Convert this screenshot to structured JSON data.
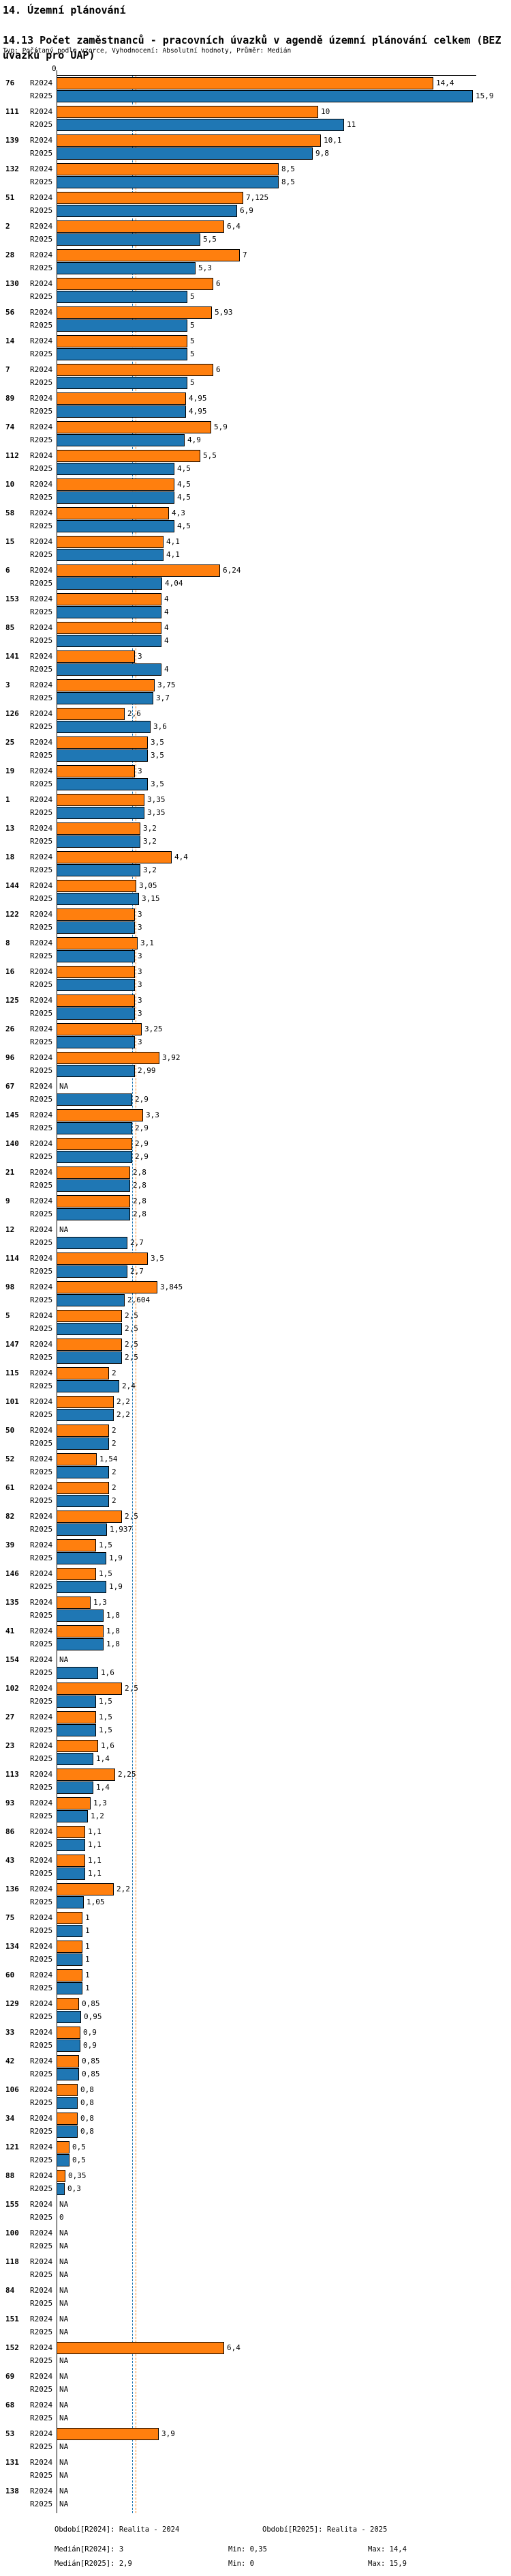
{
  "title": {
    "line1": "14. Územní plánování",
    "line2": "14.13 Počet zaměstnanců - pracovních úvazků v agendě územní plánování celkem (BEZ úvazků pro ÚAP)"
  },
  "subtitle": "Typ: Počítaný podle vzorce, Vyhodnocení: Absolutní hodnoty, Průměr: Medián",
  "colors": {
    "r2024": "#ff7f0e",
    "r2025": "#1f77b4",
    "axis": "#000000"
  },
  "axis": {
    "zero_label": "0"
  },
  "na_label": "NA",
  "footer": {
    "period_r2024": "Období[R2024]: Realita - 2024",
    "period_r2025": "Období[R2025]: Realita - 2025",
    "median_r2024": "Medián[R2024]: 3",
    "min_r2024": "Min: 0,35",
    "max_r2024": "Max: 14,4",
    "median_r2025": "Medián[R2025]: 2,9",
    "min_r2025": "Min: 0",
    "max_r2025": "Max: 15,9"
  },
  "chart_data": {
    "type": "bar",
    "orientation": "horizontal",
    "title": "14.13 Počet zaměstnanců - pracovních úvazků v agendě územní plánování celkem (BEZ úvazků pro ÚAP)",
    "xlabel": "",
    "ylabel": "",
    "xlim": [
      0,
      16
    ],
    "grid": false,
    "legend_position": "bottom",
    "median_lines": {
      "R2024": 3,
      "R2025": 2.9
    },
    "stats": {
      "R2024": {
        "median": 3,
        "min": 0.35,
        "max": 14.4
      },
      "R2025": {
        "median": 2.9,
        "min": 0,
        "max": 15.9
      }
    },
    "categories": [
      "76",
      "111",
      "139",
      "132",
      "51",
      "2",
      "28",
      "130",
      "56",
      "14",
      "7",
      "89",
      "74",
      "112",
      "10",
      "58",
      "15",
      "6",
      "153",
      "85",
      "141",
      "3",
      "126",
      "25",
      "19",
      "1",
      "13",
      "18",
      "144",
      "122",
      "8",
      "16",
      "125",
      "26",
      "96",
      "67",
      "145",
      "140",
      "21",
      "9",
      "12",
      "114",
      "98",
      "5",
      "147",
      "115",
      "101",
      "50",
      "52",
      "61",
      "82",
      "39",
      "146",
      "135",
      "41",
      "154",
      "102",
      "27",
      "23",
      "113",
      "93",
      "86",
      "43",
      "136",
      "75",
      "134",
      "60",
      "129",
      "33",
      "42",
      "106",
      "34",
      "121",
      "88",
      "155",
      "100",
      "118",
      "84",
      "151",
      "152",
      "69",
      "68",
      "53",
      "131",
      "138"
    ],
    "series": [
      {
        "name": "R2024",
        "color": "#ff7f0e",
        "values": [
          14.4,
          10,
          10.1,
          8.5,
          7.125,
          6.4,
          7,
          6,
          5.93,
          5,
          6,
          4.95,
          5.9,
          5.5,
          4.5,
          4.3,
          4.1,
          6.24,
          4,
          4,
          3,
          3.75,
          2.6,
          3.5,
          3,
          3.35,
          3.2,
          4.4,
          3.05,
          3,
          3.1,
          3,
          3,
          3.25,
          3.92,
          null,
          3.3,
          2.9,
          2.8,
          2.8,
          null,
          3.5,
          3.845,
          2.5,
          2.5,
          2,
          2.2,
          2,
          1.54,
          2,
          2.5,
          1.5,
          1.5,
          1.3,
          1.8,
          null,
          2.5,
          1.5,
          1.6,
          2.25,
          1.3,
          1.1,
          1.1,
          2.2,
          1,
          1,
          1,
          0.85,
          0.9,
          0.85,
          0.8,
          0.8,
          0.5,
          0.35,
          null,
          null,
          null,
          null,
          null,
          6.4,
          null,
          null,
          3.9,
          null,
          null
        ],
        "labels": [
          "14,4",
          "10",
          "10,1",
          "8,5",
          "7,125",
          "6,4",
          "7",
          "6",
          "5,93",
          "5",
          "6",
          "4,95",
          "5,9",
          "5,5",
          "4,5",
          "4,3",
          "4,1",
          "6,24",
          "4",
          "4",
          "3",
          "3,75",
          "2,6",
          "3,5",
          "3",
          "3,35",
          "3,2",
          "4,4",
          "3,05",
          "3",
          "3,1",
          "3",
          "3",
          "3,25",
          "3,92",
          "NA",
          "3,3",
          "2,9",
          "2,8",
          "2,8",
          "NA",
          "3,5",
          "3,845",
          "2,5",
          "2,5",
          "2",
          "2,2",
          "2",
          "1,54",
          "2",
          "2,5",
          "1,5",
          "1,5",
          "1,3",
          "1,8",
          "NA",
          "2,5",
          "1,5",
          "1,6",
          "2,25",
          "1,3",
          "1,1",
          "1,1",
          "2,2",
          "1",
          "1",
          "1",
          "0,85",
          "0,9",
          "0,85",
          "0,8",
          "0,8",
          "0,5",
          "0,35",
          "NA",
          "NA",
          "NA",
          "NA",
          "NA",
          "6,4",
          "NA",
          "NA",
          "3,9",
          "NA",
          "NA"
        ]
      },
      {
        "name": "R2025",
        "color": "#1f77b4",
        "values": [
          15.9,
          11,
          9.8,
          8.5,
          6.9,
          5.5,
          5.3,
          5,
          5,
          5,
          5,
          4.95,
          4.9,
          4.5,
          4.5,
          4.5,
          4.1,
          4.04,
          4,
          4,
          4,
          3.7,
          3.6,
          3.5,
          3.5,
          3.35,
          3.2,
          3.2,
          3.15,
          3,
          3,
          3,
          3,
          3,
          2.99,
          2.9,
          2.9,
          2.9,
          2.8,
          2.8,
          2.7,
          2.7,
          2.604,
          2.5,
          2.5,
          2.4,
          2.2,
          2,
          2,
          2,
          1.937,
          1.9,
          1.9,
          1.8,
          1.8,
          1.6,
          1.5,
          1.5,
          1.4,
          1.4,
          1.2,
          1.1,
          1.1,
          1.05,
          1,
          1,
          1,
          0.95,
          0.9,
          0.85,
          0.8,
          0.8,
          0.5,
          0.3,
          0,
          null,
          null,
          null,
          null,
          null,
          null,
          null,
          null,
          null,
          null
        ],
        "labels": [
          "15,9",
          "11",
          "9,8",
          "8,5",
          "6,9",
          "5,5",
          "5,3",
          "5",
          "5",
          "5",
          "5",
          "4,95",
          "4,9",
          "4,5",
          "4,5",
          "4,5",
          "4,1",
          "4,04",
          "4",
          "4",
          "4",
          "3,7",
          "3,6",
          "3,5",
          "3,5",
          "3,35",
          "3,2",
          "3,2",
          "3,15",
          "3",
          "3",
          "3",
          "3",
          "3",
          "2,99",
          "2,9",
          "2,9",
          "2,9",
          "2,8",
          "2,8",
          "2,7",
          "2,7",
          "2,604",
          "2,5",
          "2,5",
          "2,4",
          "2,2",
          "2",
          "2",
          "2",
          "1,937",
          "1,9",
          "1,9",
          "1,8",
          "1,8",
          "1,6",
          "1,5",
          "1,5",
          "1,4",
          "1,4",
          "1,2",
          "1,1",
          "1,1",
          "1,05",
          "1",
          "1",
          "1",
          "0,95",
          "0,9",
          "0,85",
          "0,8",
          "0,8",
          "0,5",
          "0,3",
          "0",
          "NA",
          "NA",
          "NA",
          "NA",
          "NA",
          "NA",
          "NA",
          "NA",
          "NA",
          "NA"
        ]
      }
    ]
  }
}
